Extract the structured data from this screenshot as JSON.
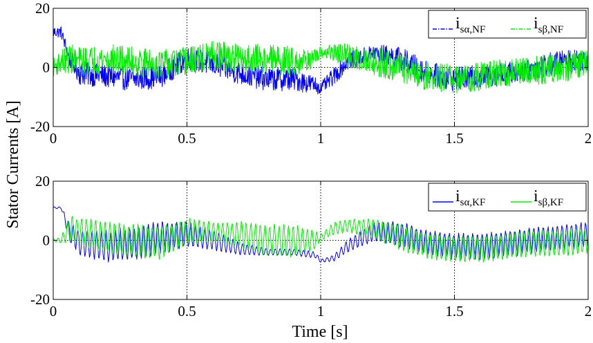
{
  "figure": {
    "ylabel": "Stator Currents [A]",
    "xlabel": "Time [s]"
  },
  "chart_data": [
    {
      "type": "line",
      "title": "",
      "xlim": [
        0,
        2
      ],
      "ylim": [
        -20,
        20
      ],
      "xticks": [
        "0",
        "0.5",
        "1",
        "1.5",
        "2"
      ],
      "yticks": [
        "20",
        "0",
        "-20"
      ],
      "grid": "vertical dotted at x ticks, dotted zero line",
      "legend_position": "top-right",
      "series": [
        {
          "name_main": "i",
          "name_sub": "sα,NF",
          "color": "#0000ff",
          "style": "dash-dot",
          "envelope": {
            "t": [
              0,
              0.03,
              0.06,
              0.1,
              0.2,
              0.3,
              0.4,
              0.5,
              0.6,
              0.7,
              0.8,
              0.9,
              0.98,
              1.0,
              1.05,
              1.1,
              1.2,
              1.3,
              1.4,
              1.5,
              1.6,
              1.7,
              1.8,
              1.9,
              2.0
            ],
            "mean": [
              12,
              12,
              3,
              -2,
              -3,
              -4,
              -3,
              3,
              1,
              -2,
              -4,
              -4,
              -6,
              -7,
              -3,
              2,
              5,
              3,
              -2,
              -4,
              -3,
              -2,
              0,
              2,
              3
            ],
            "amp": [
              2,
              2,
              3,
              4,
              4,
              4,
              4,
              4,
              4,
              4,
              4,
              4,
              3,
              2,
              3,
              3,
              3,
              4,
              4,
              4,
              4,
              4,
              4,
              4,
              4
            ]
          }
        },
        {
          "name_main": "i",
          "name_sub": "sβ,NF",
          "color": "#00ee00",
          "style": "dash-dot",
          "envelope": {
            "t": [
              0,
              0.03,
              0.06,
              0.1,
              0.2,
              0.3,
              0.4,
              0.5,
              0.6,
              0.7,
              0.8,
              0.9,
              0.98,
              1.0,
              1.05,
              1.1,
              1.2,
              1.3,
              1.4,
              1.5,
              1.6,
              1.7,
              1.8,
              1.9,
              2.0
            ],
            "mean": [
              0,
              2,
              3,
              2,
              3,
              2,
              1,
              2,
              4,
              3,
              3,
              2,
              3,
              5,
              5,
              4,
              2,
              0,
              -3,
              -4,
              -3,
              -2,
              -1,
              0,
              1
            ],
            "amp": [
              3,
              4,
              5,
              5,
              5,
              5,
              5,
              5,
              5,
              5,
              5,
              5,
              3,
              2,
              3,
              4,
              5,
              5,
              5,
              5,
              5,
              5,
              5,
              5,
              5
            ]
          }
        }
      ]
    },
    {
      "type": "line",
      "title": "",
      "xlim": [
        0,
        2
      ],
      "ylim": [
        -20,
        20
      ],
      "xticks": [
        "0",
        "0.5",
        "1",
        "1.5",
        "2"
      ],
      "yticks": [
        "20",
        "0",
        "-20"
      ],
      "grid": "vertical dotted at x ticks, dotted zero line",
      "legend_position": "top-right",
      "series": [
        {
          "name_main": "i",
          "name_sub": "sα,KF",
          "color": "#0000ff",
          "style": "solid",
          "envelope": {
            "t": [
              0,
              0.03,
              0.06,
              0.1,
              0.2,
              0.3,
              0.4,
              0.5,
              0.6,
              0.7,
              0.8,
              0.9,
              0.98,
              1.0,
              1.05,
              1.1,
              1.2,
              1.3,
              1.4,
              1.5,
              1.6,
              1.7,
              1.8,
              1.9,
              2.0
            ],
            "mean": [
              11,
              11,
              3,
              -1,
              -2,
              -1,
              1,
              2,
              0,
              -3,
              -4,
              -4,
              -5,
              -7,
              -6,
              -2,
              3,
              2,
              -1,
              -2,
              -2,
              -1,
              0,
              1,
              2
            ],
            "amp": [
              0.3,
              0.3,
              3,
              4,
              5,
              5,
              5,
              4,
              3,
              2,
              1,
              1,
              1,
              0.5,
              1,
              2,
              3,
              4,
              4,
              4,
              4,
              4,
              4,
              4,
              4
            ]
          }
        },
        {
          "name_main": "i",
          "name_sub": "sβ,KF",
          "color": "#00ee00",
          "style": "solid",
          "envelope": {
            "t": [
              0,
              0.03,
              0.06,
              0.1,
              0.2,
              0.3,
              0.4,
              0.5,
              0.6,
              0.7,
              0.8,
              0.9,
              0.98,
              1.0,
              1.05,
              1.1,
              1.2,
              1.3,
              1.4,
              1.5,
              1.6,
              1.7,
              1.8,
              1.9,
              2.0
            ],
            "mean": [
              0,
              0,
              4,
              3,
              1,
              0,
              -1,
              3,
              3,
              2,
              0,
              0,
              0,
              1,
              4,
              5,
              4,
              1,
              -2,
              -3,
              -3,
              -2,
              -1,
              -1,
              0
            ],
            "amp": [
              0.5,
              1,
              4,
              4,
              5,
              5,
              5,
              4,
              3,
              4,
              5,
              5,
              3,
              1,
              2,
              2,
              3,
              4,
              4,
              4,
              4,
              4,
              4,
              4,
              4
            ]
          }
        }
      ]
    }
  ]
}
